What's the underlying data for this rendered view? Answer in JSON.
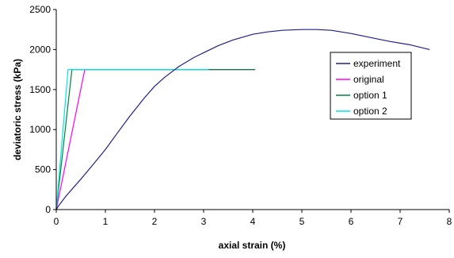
{
  "chart_data": {
    "type": "line",
    "title": "",
    "xlabel": "axial strain (%)",
    "ylabel": "deviatoric stress (kPa)",
    "xlim": [
      0,
      8
    ],
    "ylim": [
      0,
      2500
    ],
    "xticks": [
      "0",
      "1",
      "2",
      "3",
      "4",
      "5",
      "6",
      "7",
      "8"
    ],
    "yticks": [
      "0",
      "500",
      "1000",
      "1500",
      "2000",
      "2500"
    ],
    "grid": false,
    "legend_position": "right",
    "series": [
      {
        "name": "experiment",
        "color": "#1f1f8f",
        "x": [
          0,
          0.05,
          0.2,
          0.5,
          0.8,
          1.0,
          1.2,
          1.5,
          1.8,
          2.0,
          2.2,
          2.5,
          2.8,
          3.0,
          3.3,
          3.6,
          4.0,
          4.3,
          4.6,
          5.0,
          5.3,
          5.6,
          6.0,
          6.4,
          6.8,
          7.2,
          7.6
        ],
        "y": [
          0,
          50,
          170,
          380,
          600,
          750,
          920,
          1170,
          1400,
          1540,
          1650,
          1790,
          1900,
          1960,
          2050,
          2120,
          2190,
          2220,
          2240,
          2250,
          2250,
          2240,
          2200,
          2150,
          2100,
          2060,
          2000
        ]
      },
      {
        "name": "original",
        "color": "#ff00ff",
        "x": [
          0,
          0.58,
          4.05
        ],
        "y": [
          0,
          1750,
          1750
        ]
      },
      {
        "name": "option 1",
        "color": "#008040",
        "x": [
          0,
          0.32,
          4.05
        ],
        "y": [
          0,
          1750,
          1750
        ]
      },
      {
        "name": "option 2",
        "color": "#00e5e5",
        "x": [
          0,
          0.24,
          3.1
        ],
        "y": [
          0,
          1750,
          1750
        ]
      }
    ]
  }
}
